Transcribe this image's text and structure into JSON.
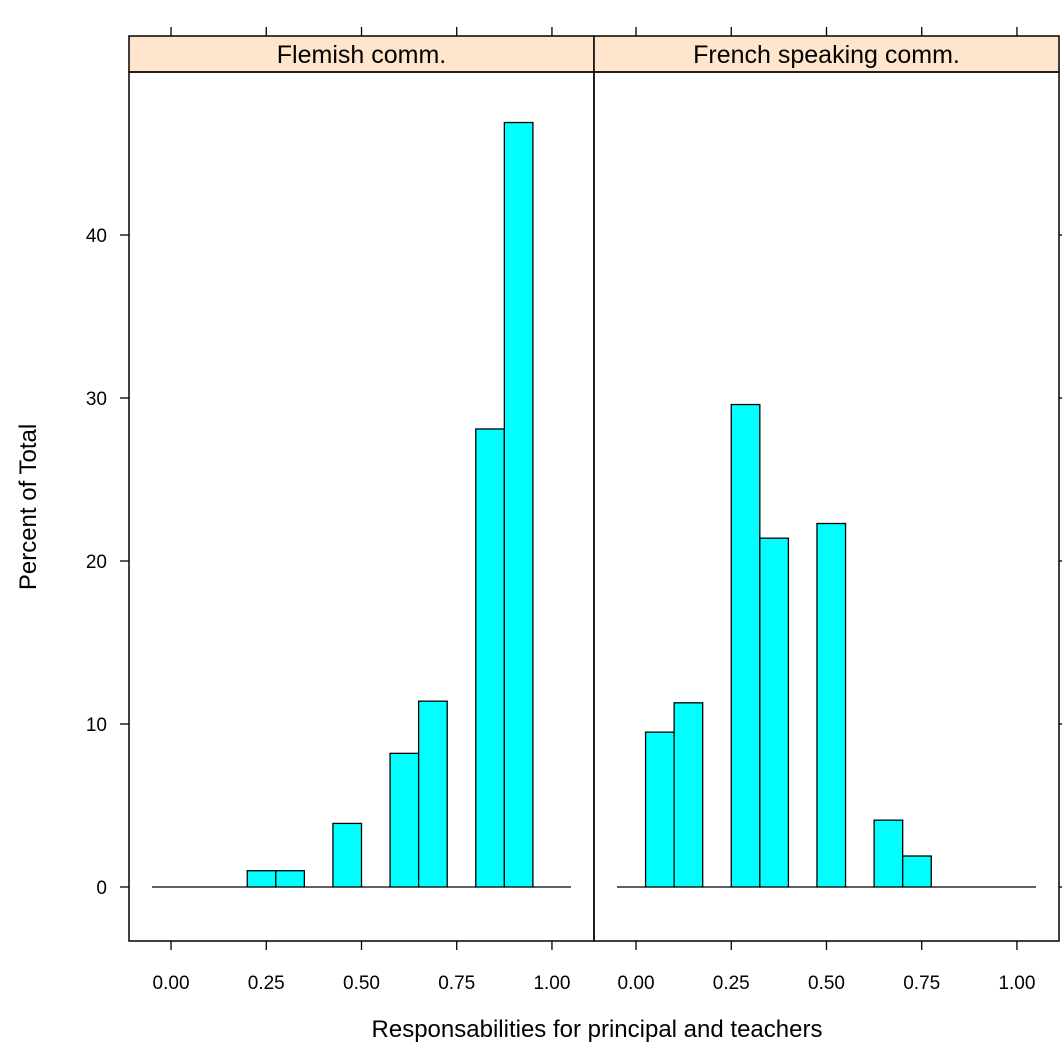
{
  "chart_data": {
    "type": "bar",
    "subtype": "histogram, two panels side by side",
    "xlabel": "Responsabilities for principal and teachers",
    "ylabel": "Percent of Total",
    "xlim": [
      -0.05,
      1.05
    ],
    "ylim": [
      -3.2,
      50
    ],
    "x_ticks": [
      "0.00",
      "0.25",
      "0.50",
      "0.75",
      "1.00"
    ],
    "y_ticks": [
      "0",
      "10",
      "20",
      "30",
      "40"
    ],
    "bin_width": 0.1,
    "colors": {
      "bar_fill": "#00FFFF",
      "strip_fill": "#FFE5CC",
      "outline": "#000000"
    },
    "panels": [
      {
        "title": "Flemish comm.",
        "bars": [
          {
            "x0": -0.05,
            "x1": 0.05,
            "value": 0
          },
          {
            "x0": 0.05,
            "x1": 0.125,
            "value": 0
          },
          {
            "x0": 0.125,
            "x1": 0.2,
            "value": 0
          },
          {
            "x0": 0.2,
            "x1": 0.275,
            "value": 1.0
          },
          {
            "x0": 0.275,
            "x1": 0.35,
            "value": 1.0
          },
          {
            "x0": 0.35,
            "x1": 0.425,
            "value": 0
          },
          {
            "x0": 0.425,
            "x1": 0.5,
            "value": 3.9
          },
          {
            "x0": 0.5,
            "x1": 0.575,
            "value": 0
          },
          {
            "x0": 0.575,
            "x1": 0.65,
            "value": 8.2
          },
          {
            "x0": 0.65,
            "x1": 0.725,
            "value": 11.4
          },
          {
            "x0": 0.725,
            "x1": 0.8,
            "value": 0
          },
          {
            "x0": 0.8,
            "x1": 0.875,
            "value": 28.1
          },
          {
            "x0": 0.875,
            "x1": 0.95,
            "value": 46.9
          },
          {
            "x0": 0.95,
            "x1": 1.05,
            "value": 0
          }
        ]
      },
      {
        "title": "French speaking comm.",
        "bars": [
          {
            "x0": -0.05,
            "x1": 0.025,
            "value": 0
          },
          {
            "x0": 0.025,
            "x1": 0.1,
            "value": 9.5
          },
          {
            "x0": 0.1,
            "x1": 0.175,
            "value": 11.3
          },
          {
            "x0": 0.175,
            "x1": 0.25,
            "value": 0
          },
          {
            "x0": 0.25,
            "x1": 0.325,
            "value": 29.6
          },
          {
            "x0": 0.325,
            "x1": 0.4,
            "value": 21.4
          },
          {
            "x0": 0.4,
            "x1": 0.475,
            "value": 0
          },
          {
            "x0": 0.475,
            "x1": 0.55,
            "value": 22.3
          },
          {
            "x0": 0.55,
            "x1": 0.625,
            "value": 0
          },
          {
            "x0": 0.625,
            "x1": 0.7,
            "value": 4.1
          },
          {
            "x0": 0.7,
            "x1": 0.775,
            "value": 1.9
          },
          {
            "x0": 0.775,
            "x1": 1.05,
            "value": 0
          }
        ]
      }
    ]
  }
}
